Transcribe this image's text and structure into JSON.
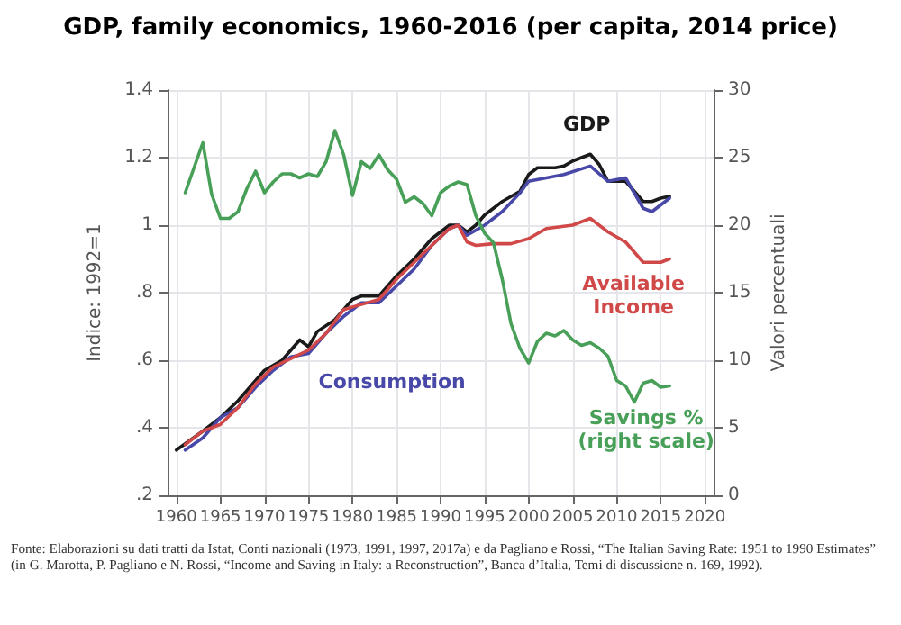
{
  "chart_data": {
    "type": "line",
    "title": "GDP, family economics, 1960-2016 (per capita, 2014 price)",
    "ylabel": "Indice: 1992=1",
    "y2label": "Valori percentuali",
    "xlim": [
      1959,
      2021
    ],
    "xticks": [
      1960,
      1965,
      1970,
      1975,
      1980,
      1985,
      1990,
      1995,
      2000,
      2005,
      2010,
      2015,
      2020
    ],
    "ylim": [
      0.2,
      1.4
    ],
    "yticks": [
      {
        "value": 0.2,
        "label": ".2"
      },
      {
        "value": 0.4,
        "label": ".4"
      },
      {
        "value": 0.6,
        "label": ".6"
      },
      {
        "value": 0.8,
        "label": ".8"
      },
      1,
      1.2,
      1.4
    ],
    "y2lim": [
      0,
      30
    ],
    "y2ticks": [
      0,
      5,
      10,
      15,
      20,
      25,
      30
    ],
    "grid": true,
    "legend": false,
    "marker": "none",
    "line_style": "solid",
    "series": [
      {
        "name": "GDP",
        "color": "#1a1a1a",
        "x": [
          1960,
          1963,
          1965,
          1967,
          1969,
          1970,
          1972,
          1974,
          1975,
          1976,
          1978,
          1980,
          1981,
          1983,
          1985,
          1987,
          1989,
          1990,
          1991,
          1992,
          1993,
          1994,
          1995,
          1997,
          1999,
          2000,
          2001,
          2003,
          2004,
          2005,
          2007,
          2008,
          2009,
          2010,
          2011,
          2012,
          2013,
          2014,
          2015,
          2016
        ],
        "values": [
          0.334,
          0.39,
          0.43,
          0.48,
          0.54,
          0.57,
          0.6,
          0.66,
          0.64,
          0.685,
          0.72,
          0.78,
          0.79,
          0.79,
          0.85,
          0.9,
          0.96,
          0.98,
          1.0,
          1.0,
          0.98,
          1.0,
          1.03,
          1.07,
          1.1,
          1.15,
          1.17,
          1.17,
          1.175,
          1.19,
          1.21,
          1.18,
          1.13,
          1.13,
          1.13,
          1.1,
          1.07,
          1.07,
          1.08,
          1.085
        ]
      },
      {
        "name": "Consumption",
        "color": "#4848a8",
        "x": [
          1961,
          1963,
          1965,
          1967,
          1969,
          1971,
          1973,
          1975,
          1977,
          1979,
          1981,
          1983,
          1985,
          1987,
          1989,
          1991,
          1992,
          1993,
          1995,
          1997,
          1999,
          2000,
          2002,
          2004,
          2007,
          2009,
          2011,
          2013,
          2014,
          2016
        ],
        "values": [
          0.334,
          0.37,
          0.43,
          0.46,
          0.52,
          0.57,
          0.61,
          0.62,
          0.68,
          0.73,
          0.77,
          0.77,
          0.82,
          0.87,
          0.94,
          0.99,
          1.0,
          0.97,
          1.0,
          1.04,
          1.095,
          1.13,
          1.14,
          1.15,
          1.175,
          1.13,
          1.14,
          1.05,
          1.04,
          1.08
        ]
      },
      {
        "name": "Available Income",
        "color": "#d04848",
        "x": [
          1961,
          1963,
          1965,
          1967,
          1969,
          1971,
          1973,
          1975,
          1977,
          1979,
          1981,
          1983,
          1985,
          1987,
          1989,
          1991,
          1992,
          1993,
          1994,
          1996,
          1998,
          2000,
          2002,
          2005,
          2007,
          2009,
          2011,
          2013,
          2015,
          2016
        ],
        "values": [
          0.35,
          0.39,
          0.41,
          0.46,
          0.53,
          0.58,
          0.605,
          0.63,
          0.68,
          0.75,
          0.765,
          0.78,
          0.84,
          0.89,
          0.94,
          0.99,
          1.0,
          0.95,
          0.94,
          0.945,
          0.945,
          0.96,
          0.99,
          1.0,
          1.02,
          0.98,
          0.95,
          0.89,
          0.89,
          0.9
        ]
      },
      {
        "name": "Savings % (right scale)",
        "color": "#48a058",
        "axis": "y2",
        "x": [
          1961,
          1963,
          1964,
          1965,
          1966,
          1967,
          1968,
          1969,
          1970,
          1971,
          1972,
          1973,
          1974,
          1975,
          1976,
          1977,
          1978,
          1979,
          1980,
          1981,
          1982,
          1983,
          1984,
          1985,
          1986,
          1987,
          1988,
          1989,
          1990,
          1991,
          1992,
          1993,
          1994,
          1995,
          1996,
          1997,
          1998,
          1999,
          2000,
          2001,
          2002,
          2003,
          2004,
          2005,
          2006,
          2007,
          2008,
          2009,
          2010,
          2011,
          2012,
          2013,
          2014,
          2015,
          2016
        ],
        "values": [
          22.4,
          26.1,
          22.3,
          20.5,
          20.5,
          21.0,
          22.7,
          24.0,
          22.4,
          23.2,
          23.8,
          23.8,
          23.5,
          23.8,
          23.6,
          24.7,
          27.0,
          25.2,
          22.2,
          24.7,
          24.2,
          25.2,
          24.1,
          23.4,
          21.7,
          22.1,
          21.6,
          20.7,
          22.4,
          22.9,
          23.2,
          23.0,
          20.7,
          19.4,
          18.7,
          16.0,
          12.7,
          10.9,
          9.8,
          11.4,
          12.0,
          11.8,
          12.2,
          11.5,
          11.1,
          11.3,
          10.9,
          10.3,
          8.5,
          8.1,
          6.9,
          8.3,
          8.5,
          8.0,
          8.1
        ]
      }
    ],
    "annotations": [
      "Fonte: Elaborazioni su dati tratti da Istat, Conti nazionali (1973, 1991, 1997, 2017a) e da Pagliano e Rossi, “The Italian Saving Rate: 1951 to 1990 Estimates” (in G. Marotta, P. Pagliano e N. Rossi, “Income and Saving in Italy: a Reconstruction”, Banca d’Italia, Temi di discussione n. 169, 1992)."
    ]
  }
}
